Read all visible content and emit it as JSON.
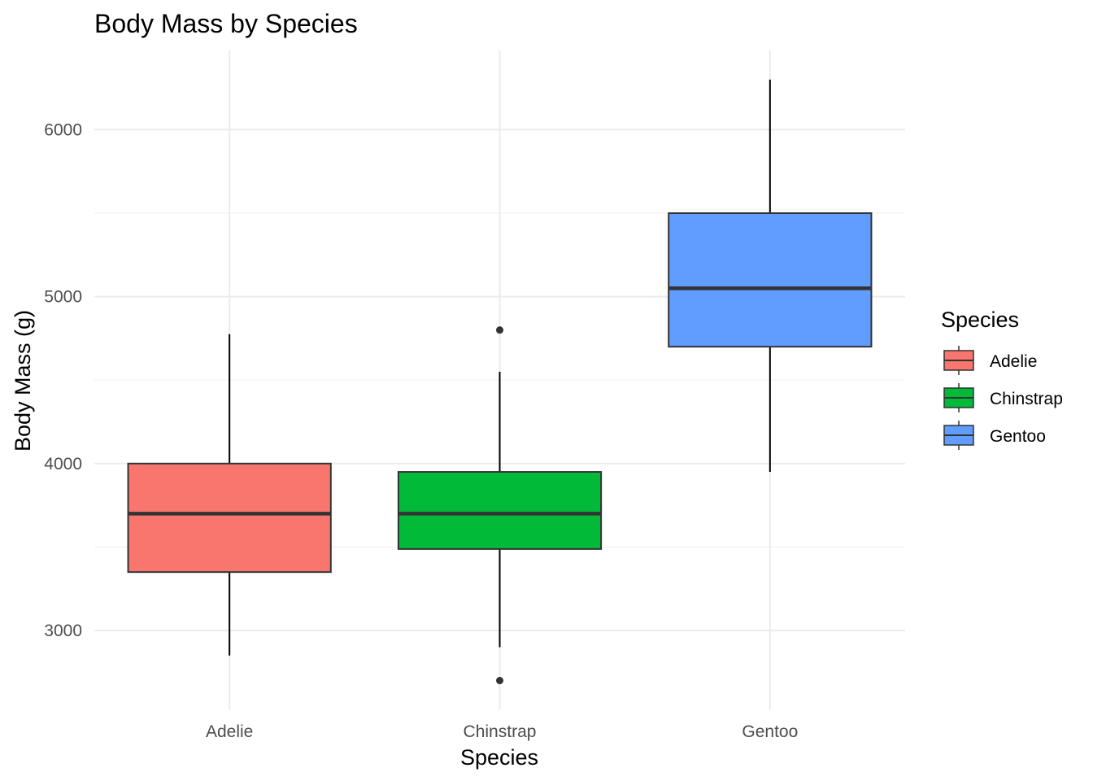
{
  "chart_data": {
    "type": "boxplot",
    "title": "Body Mass by Species",
    "xlabel": "Species",
    "ylabel": "Body Mass (g)",
    "categories": [
      "Adelie",
      "Chinstrap",
      "Gentoo"
    ],
    "ylim": [
      2500,
      6400
    ],
    "yticks": [
      3000,
      4000,
      5000,
      6000
    ],
    "grid": true,
    "legend": {
      "title": "Species",
      "position": "right"
    },
    "series": [
      {
        "name": "Adelie",
        "color": "#F8766D",
        "whisker_low": 2850,
        "q1": 3350,
        "median": 3700,
        "q3": 4000,
        "whisker_high": 4775,
        "outliers": []
      },
      {
        "name": "Chinstrap",
        "color": "#00BA38",
        "whisker_low": 2900,
        "q1": 3488,
        "median": 3700,
        "q3": 3950,
        "whisker_high": 4550,
        "outliers": [
          4800,
          2700
        ]
      },
      {
        "name": "Gentoo",
        "color": "#619CFF",
        "whisker_low": 3950,
        "q1": 4700,
        "median": 5050,
        "q3": 5500,
        "whisker_high": 6300,
        "outliers": []
      }
    ]
  }
}
